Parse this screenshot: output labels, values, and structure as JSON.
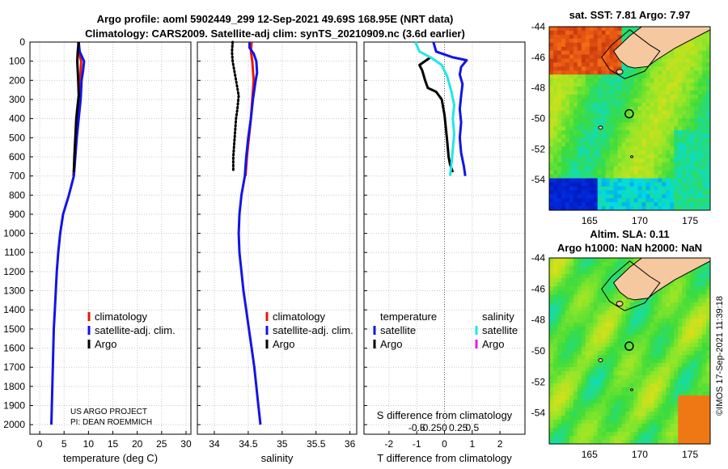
{
  "title_line1": "Argo profile: aoml 5902449_299 12-Sep-2021 49.69S 168.95E (NRT data)",
  "title_line2": "Climatology: CARS2009. Satellite-adj clim: synTS_20210909.nc (3.6d earlier)",
  "credit_line1": "US ARGO PROJECT",
  "credit_line2": "PI: DEAN ROEMMICH",
  "timestamp": "©IMOS 17-Sep-2021 11:39:18",
  "colors": {
    "climatology": "#e8180a",
    "satellite": "#1414e6",
    "argo": "#000000",
    "sat_salinity": "#22e6e6",
    "argo_salinity": "#e619e6",
    "land": "#f5c8a0"
  },
  "depth_axis": {
    "ticks": [
      0,
      100,
      200,
      300,
      400,
      500,
      600,
      700,
      800,
      900,
      1000,
      1100,
      1200,
      1300,
      1400,
      1500,
      1600,
      1700,
      1800,
      1900,
      2000
    ],
    "labels": [
      "0",
      "100",
      "200",
      "300",
      "400",
      "500",
      "600",
      "700",
      "800",
      "900",
      "1000",
      "1100",
      "1200",
      "1300",
      "1400",
      "1500",
      "1600",
      "1700",
      "1800",
      "1900",
      "2000"
    ],
    "range": [
      0,
      2050
    ]
  },
  "chart_data": [
    {
      "type": "line",
      "name": "temperature",
      "xlabel": "temperature (deg C)",
      "xlim": [
        -2,
        31
      ],
      "xticks": [
        0,
        5,
        10,
        15,
        20,
        25,
        30
      ],
      "xtick_labels": [
        "0",
        "5",
        "10",
        "15",
        "20",
        "25",
        "30"
      ],
      "ylim": [
        0,
        2050
      ],
      "legend": [
        "climatology",
        "satellite-adj. clim.",
        "Argo"
      ],
      "series": [
        {
          "name": "climatology",
          "style": "solid",
          "points": [
            [
              7.9,
              0
            ],
            [
              8.0,
              50
            ],
            [
              8.5,
              100
            ],
            [
              8.3,
              200
            ],
            [
              8.0,
              300
            ],
            [
              7.8,
              400
            ],
            [
              7.5,
              500
            ],
            [
              7.2,
              600
            ],
            [
              6.9,
              700
            ]
          ]
        },
        {
          "name": "satellite-adj. clim.",
          "style": "solid",
          "points": [
            [
              8.0,
              0
            ],
            [
              8.2,
              50
            ],
            [
              9.1,
              100
            ],
            [
              8.9,
              150
            ],
            [
              8.6,
              200
            ],
            [
              8.4,
              300
            ],
            [
              8.0,
              400
            ],
            [
              7.6,
              500
            ],
            [
              7.3,
              600
            ],
            [
              7.0,
              700
            ],
            [
              6.0,
              800
            ],
            [
              4.8,
              900
            ],
            [
              4.2,
              1000
            ],
            [
              3.8,
              1100
            ],
            [
              3.5,
              1200
            ],
            [
              3.3,
              1300
            ],
            [
              3.1,
              1400
            ],
            [
              2.9,
              1500
            ],
            [
              2.8,
              1600
            ],
            [
              2.7,
              1700
            ],
            [
              2.6,
              1800
            ],
            [
              2.5,
              1900
            ],
            [
              2.4,
              2000
            ]
          ]
        },
        {
          "name": "Argo",
          "style": "solid",
          "points": [
            [
              8.0,
              0
            ],
            [
              7.8,
              50
            ],
            [
              7.7,
              100
            ],
            [
              7.9,
              200
            ],
            [
              8.0,
              280
            ],
            [
              7.7,
              350
            ],
            [
              7.5,
              400
            ],
            [
              7.3,
              500
            ],
            [
              7.1,
              600
            ],
            [
              7.0,
              680
            ]
          ]
        }
      ]
    },
    {
      "type": "line",
      "name": "salinity",
      "xlabel": "salinity",
      "xlim": [
        33.75,
        36.1
      ],
      "xticks": [
        34,
        34.5,
        35,
        35.5,
        36
      ],
      "xtick_labels": [
        "34",
        "34.5",
        "35",
        "35.5",
        "36"
      ],
      "ylim": [
        0,
        2050
      ],
      "legend": [
        "climatology",
        "satellite-adj. clim.",
        "Argo"
      ],
      "series": [
        {
          "name": "climatology",
          "style": "solid",
          "points": [
            [
              34.55,
              0
            ],
            [
              34.54,
              50
            ],
            [
              34.56,
              100
            ],
            [
              34.58,
              200
            ],
            [
              34.56,
              300
            ],
            [
              34.54,
              400
            ],
            [
              34.51,
              500
            ],
            [
              34.48,
              600
            ],
            [
              34.46,
              700
            ]
          ]
        },
        {
          "name": "satellite-adj. clim.",
          "style": "solid",
          "points": [
            [
              34.52,
              0
            ],
            [
              34.52,
              30
            ],
            [
              34.58,
              60
            ],
            [
              34.62,
              100
            ],
            [
              34.63,
              160
            ],
            [
              34.61,
              200
            ],
            [
              34.57,
              300
            ],
            [
              34.54,
              400
            ],
            [
              34.5,
              500
            ],
            [
              34.47,
              600
            ],
            [
              34.45,
              700
            ],
            [
              34.4,
              800
            ],
            [
              34.37,
              900
            ],
            [
              34.36,
              1000
            ],
            [
              34.37,
              1100
            ],
            [
              34.4,
              1200
            ],
            [
              34.43,
              1300
            ],
            [
              34.47,
              1400
            ],
            [
              34.51,
              1500
            ],
            [
              34.55,
              1600
            ],
            [
              34.59,
              1700
            ],
            [
              34.62,
              1800
            ],
            [
              34.65,
              1900
            ],
            [
              34.68,
              2000
            ]
          ]
        },
        {
          "name": "Argo",
          "style": "dotted",
          "points": [
            [
              34.27,
              0
            ],
            [
              34.26,
              50
            ],
            [
              34.27,
              100
            ],
            [
              34.32,
              200
            ],
            [
              34.36,
              280
            ],
            [
              34.34,
              350
            ],
            [
              34.32,
              400
            ],
            [
              34.3,
              500
            ],
            [
              34.28,
              600
            ],
            [
              34.28,
              680
            ]
          ]
        }
      ]
    },
    {
      "type": "line",
      "name": "difference",
      "xlabel": "T difference from climatology",
      "x2label": "S difference from climatology",
      "xlim": [
        -2.9,
        2.9
      ],
      "xticks": [
        -2,
        -1,
        0,
        1,
        2
      ],
      "xtick_labels": [
        "-2",
        "-1",
        "0",
        "1",
        "2"
      ],
      "x2ticks": [
        -1,
        -0.5,
        0,
        0.5,
        1
      ],
      "x2tick_labels": [
        "-0.5",
        "-0.25",
        "0",
        "0.25",
        "0.5"
      ],
      "ylim": [
        0,
        2050
      ],
      "legend_temperature_title": "temperature",
      "legend_salinity_title": "salinity",
      "legend_temperature": [
        "satellite",
        "Argo"
      ],
      "legend_salinity": [
        "satellite",
        "Argo"
      ],
      "series": [
        {
          "name": "temperature satellite",
          "style": "solid",
          "points": [
            [
              -0.4,
              0
            ],
            [
              -0.3,
              50
            ],
            [
              0.3,
              80
            ],
            [
              0.8,
              95
            ],
            [
              0.6,
              130
            ],
            [
              0.55,
              170
            ],
            [
              0.65,
              220
            ],
            [
              0.6,
              280
            ],
            [
              0.55,
              350
            ],
            [
              0.6,
              420
            ],
            [
              0.55,
              500
            ],
            [
              0.6,
              580
            ],
            [
              0.7,
              650
            ],
            [
              0.75,
              700
            ]
          ]
        },
        {
          "name": "temperature Argo",
          "style": "solid",
          "points": [
            [
              -0.5,
              80
            ],
            [
              -0.9,
              120
            ],
            [
              -0.8,
              150
            ],
            [
              -0.7,
              200
            ],
            [
              -0.6,
              240
            ],
            [
              -0.3,
              260
            ],
            [
              -0.1,
              300
            ],
            [
              0.0,
              380
            ],
            [
              0.05,
              450
            ],
            [
              0.1,
              520
            ],
            [
              0.15,
              600
            ],
            [
              0.2,
              640
            ],
            [
              0.3,
              680
            ]
          ]
        },
        {
          "name": "salinity satellite",
          "style": "solid",
          "points": [
            [
              -1.05,
              0
            ],
            [
              -0.9,
              50
            ],
            [
              -0.5,
              80
            ],
            [
              -0.1,
              120
            ],
            [
              0.1,
              180
            ],
            [
              0.25,
              260
            ],
            [
              0.35,
              330
            ],
            [
              0.3,
              400
            ],
            [
              0.35,
              480
            ],
            [
              0.3,
              560
            ],
            [
              0.25,
              640
            ],
            [
              0.2,
              700
            ]
          ]
        }
      ]
    },
    {
      "type": "heatmap",
      "name": "sst map",
      "title": "sat. SST: 7.81 Argo: 7.97",
      "xlim": [
        161,
        177
      ],
      "ylim": [
        -56,
        -44
      ],
      "xticks": [
        165,
        170,
        175
      ],
      "xtick_labels": [
        "165",
        "170",
        "175"
      ],
      "yticks": [
        -44,
        -46,
        -48,
        -50,
        -52,
        -54
      ],
      "ytick_labels": [
        "-44",
        "-46",
        "-48",
        "-50",
        "-52",
        "-54"
      ],
      "argo_position": [
        168.95,
        -49.69
      ]
    },
    {
      "type": "heatmap",
      "name": "sla map",
      "title": "Altim. SLA: 0.11",
      "subtitle": "Argo h1000: NaN h2000: NaN",
      "xlim": [
        161,
        177
      ],
      "ylim": [
        -56,
        -44
      ],
      "xticks": [
        165,
        170,
        175
      ],
      "xtick_labels": [
        "165",
        "170",
        "175"
      ],
      "yticks": [
        -44,
        -46,
        -48,
        -50,
        -52,
        -54
      ],
      "ytick_labels": [
        "-44",
        "-46",
        "-48",
        "-50",
        "-52",
        "-54"
      ],
      "argo_position": [
        168.95,
        -49.69
      ]
    }
  ]
}
